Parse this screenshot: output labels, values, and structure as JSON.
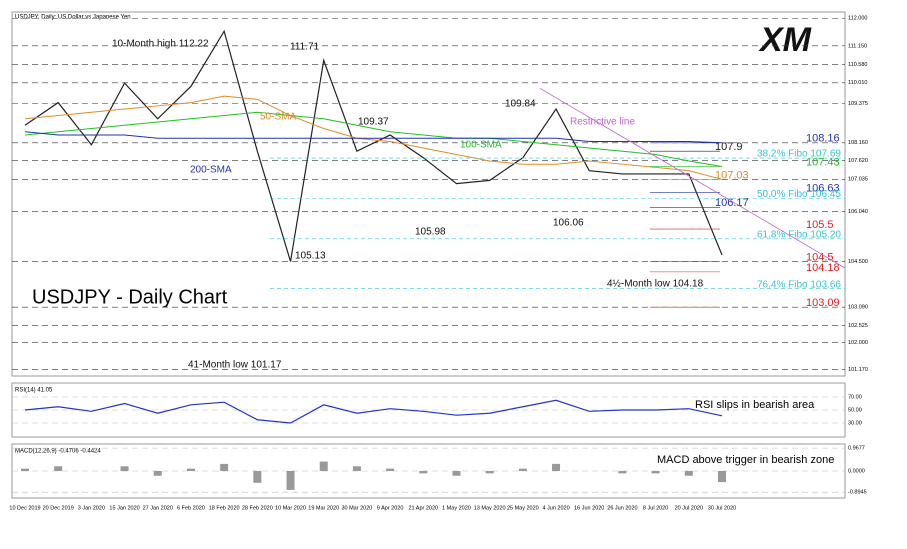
{
  "header": "USDJPY, Daily:  US Dollar vs Japanese Yen",
  "logo": "XM",
  "chart_data": [
    {
      "type": "line",
      "title": "USDJPY - Daily Chart",
      "categories": [
        "10 Dec 2019",
        "20 Dec 2019",
        "3 Jan 2020",
        "15 Jan 2020",
        "27 Jan 2020",
        "6 Feb 2020",
        "18 Feb 2020",
        "28 Feb 2020",
        "10 Mar 2020",
        "19 Mar 2020",
        "30 Mar 2020",
        "9 Apr 2020",
        "21 Apr 2020",
        "1 May 2020",
        "13 May 2020",
        "25 May 2020",
        "4 Jun 2020",
        "16 Jun 2020",
        "26 Jun 2020",
        "8 Jul 2020",
        "20 Jul 2020",
        "30 Jul 2020"
      ],
      "series": [
        {
          "name": "USDJPY",
          "color": "#222222",
          "values": [
            108.7,
            109.4,
            108.1,
            110.0,
            108.9,
            109.9,
            111.6,
            107.9,
            104.5,
            110.7,
            107.9,
            108.4,
            107.7,
            106.9,
            107.0,
            107.7,
            109.2,
            107.3,
            107.2,
            107.2,
            107.2,
            104.7
          ]
        },
        {
          "name": "50-SMA",
          "color": "#e08a2a",
          "values": [
            108.9,
            109.0,
            109.1,
            109.2,
            109.3,
            109.4,
            109.6,
            109.5,
            109.0,
            108.6,
            108.3,
            108.2,
            108.0,
            107.8,
            107.6,
            107.5,
            107.5,
            107.6,
            107.5,
            107.4,
            107.3,
            107.03
          ]
        },
        {
          "name": "100-SMA",
          "color": "#22c022",
          "values": [
            108.4,
            108.5,
            108.6,
            108.7,
            108.8,
            108.9,
            109.0,
            109.1,
            109.0,
            108.9,
            108.7,
            108.5,
            108.4,
            108.3,
            108.3,
            108.2,
            108.1,
            108.0,
            107.9,
            107.8,
            107.6,
            107.43
          ]
        },
        {
          "name": "200-SMA",
          "color": "#2233aa",
          "values": [
            108.5,
            108.4,
            108.4,
            108.4,
            108.3,
            108.3,
            108.3,
            108.3,
            108.3,
            108.3,
            108.3,
            108.3,
            108.3,
            108.3,
            108.3,
            108.3,
            108.3,
            108.2,
            108.2,
            108.2,
            108.2,
            108.16
          ]
        }
      ],
      "ylim": [
        101.0,
        112.1
      ],
      "yticks": [
        {
          "value": 112.0,
          "label": "112.000"
        },
        {
          "value": 111.15,
          "label": "111.150"
        },
        {
          "value": 110.58,
          "label": "110.580"
        },
        {
          "value": 110.01,
          "label": "110.010"
        },
        {
          "value": 109.375,
          "label": "109.375"
        },
        {
          "value": 108.16,
          "label": "108.160"
        },
        {
          "value": 107.62,
          "label": "107.620"
        },
        {
          "value": 107.035,
          "label": "107.035"
        },
        {
          "value": 106.04,
          "label": "106.040"
        },
        {
          "value": 104.5,
          "label": "104.500"
        },
        {
          "value": 103.09,
          "label": "103.090"
        },
        {
          "value": 102.525,
          "label": "102.525"
        },
        {
          "value": 102.0,
          "label": "102.000"
        },
        {
          "value": 101.17,
          "label": "101.170"
        }
      ],
      "levels": [
        {
          "value": 108.16,
          "color": "#2233aa"
        },
        {
          "value": 107.9,
          "color": "#222222"
        },
        {
          "value": 107.43,
          "color": "#22c022"
        },
        {
          "value": 107.03,
          "color": "#e08a2a"
        },
        {
          "value": 106.63,
          "color": "#2233aa"
        },
        {
          "value": 106.17,
          "color": "#2233aa"
        },
        {
          "value": 105.5,
          "color": "#e02020"
        },
        {
          "value": 104.5,
          "color": "#e02020"
        },
        {
          "value": 104.18,
          "color": "#e02020"
        },
        {
          "value": 103.09,
          "color": "#e02020"
        }
      ],
      "fibo": [
        {
          "value": 107.69,
          "label": "38.2% Fibo 107.69"
        },
        {
          "value": 106.45,
          "label": "50.0% Fibo 106.45"
        },
        {
          "value": 105.2,
          "label": "61.8% Fibo 105.20"
        },
        {
          "value": 103.66,
          "label": "76.4% Fibo 103.66"
        }
      ],
      "annotations": [
        "10-Month high 112.22",
        "111.71",
        "109.37",
        "109.84",
        "105.13",
        "105.98",
        "106.06",
        "4½-Month low 104.18",
        "41-Month low 101.17",
        "Restrictive line"
      ]
    },
    {
      "type": "line",
      "title": "RSI(14) 41.05",
      "annotation": "RSI slips in bearish area",
      "color": "#2233cc",
      "values": [
        50,
        55,
        48,
        60,
        45,
        58,
        62,
        35,
        30,
        58,
        45,
        52,
        48,
        42,
        45,
        55,
        65,
        48,
        50,
        50,
        52,
        41
      ],
      "ylim": [
        10,
        90
      ],
      "yticks": [
        {
          "value": 70,
          "label": "70.00"
        },
        {
          "value": 50,
          "label": "50.00"
        },
        {
          "value": 30,
          "label": "30.00"
        }
      ]
    },
    {
      "type": "bar",
      "title": "MACD(12,26,9) -0.4706 -0.4424",
      "annotation": "MACD above trigger in bearish zone",
      "color": "#999999",
      "values": [
        0.1,
        0.2,
        0,
        0.2,
        -0.2,
        0.1,
        0.3,
        -0.5,
        -0.8,
        0.4,
        0.2,
        0.1,
        -0.1,
        -0.2,
        -0.1,
        0.1,
        0.3,
        0,
        -0.1,
        -0.1,
        -0.2,
        -0.47
      ],
      "ylim": [
        -1.1,
        1.1
      ],
      "yticks": [
        0.9677,
        {
          "value": 0,
          "label": "0.0000"
        },
        -0.8945
      ]
    }
  ]
}
